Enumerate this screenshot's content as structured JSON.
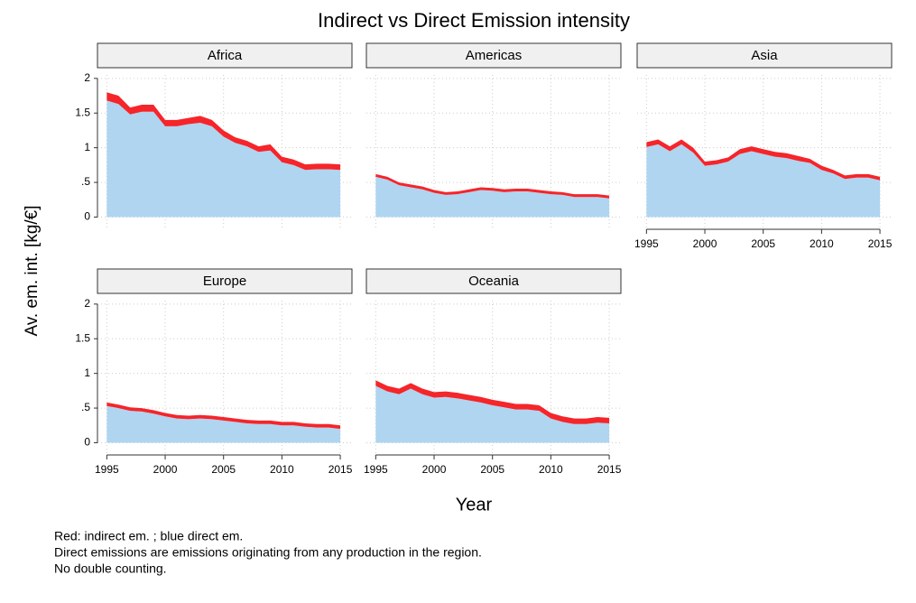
{
  "title": "Indirect vs Direct Emission intensity",
  "ylabel": "Av. em. int. [kg/€]",
  "xlabel": "Year",
  "notes": [
    "Red: indirect em. ; blue direct em.",
    "Direct emissions are emissions originating from any production in the region.",
    "No double counting."
  ],
  "axes": {
    "xlim": [
      1994.2,
      2016
    ],
    "xticks": [
      1995,
      2000,
      2005,
      2010,
      2015
    ],
    "ylim": [
      -0.15,
      2.05
    ],
    "yticks": [
      0,
      {
        "value": 0.5,
        "label": ".5"
      },
      1,
      1.5,
      2
    ],
    "grid": true
  },
  "chart_data": [
    {
      "type": "area",
      "title": "Africa",
      "x": [
        1995,
        1996,
        1997,
        1998,
        1999,
        2000,
        2001,
        2002,
        2003,
        2004,
        2005,
        2006,
        2007,
        2008,
        2009,
        2010,
        2011,
        2012,
        2013,
        2014,
        2015
      ],
      "series": [
        {
          "color": "#afd5f0",
          "values": [
            1.68,
            1.63,
            1.48,
            1.52,
            1.52,
            1.31,
            1.31,
            1.34,
            1.36,
            1.31,
            1.16,
            1.07,
            1.02,
            0.94,
            0.96,
            0.79,
            0.75,
            0.68,
            0.69,
            0.69,
            0.68
          ]
        },
        {
          "color": "#f5252a",
          "values": [
            0.12,
            0.12,
            0.1,
            0.1,
            0.1,
            0.09,
            0.09,
            0.09,
            0.1,
            0.09,
            0.09,
            0.08,
            0.08,
            0.08,
            0.09,
            0.08,
            0.08,
            0.08,
            0.08,
            0.08,
            0.08
          ]
        }
      ]
    },
    {
      "type": "area",
      "title": "Americas",
      "x": [
        1995,
        1996,
        1997,
        1998,
        1999,
        2000,
        2001,
        2002,
        2003,
        2004,
        2005,
        2006,
        2007,
        2008,
        2009,
        2010,
        2011,
        2012,
        2013,
        2014,
        2015
      ],
      "series": [
        {
          "color": "#afd5f0",
          "values": [
            0.58,
            0.54,
            0.46,
            0.43,
            0.4,
            0.35,
            0.32,
            0.33,
            0.36,
            0.39,
            0.38,
            0.36,
            0.37,
            0.37,
            0.35,
            0.33,
            0.32,
            0.29,
            0.29,
            0.29,
            0.27
          ]
        },
        {
          "color": "#f5252a",
          "values": [
            0.04,
            0.04,
            0.04,
            0.04,
            0.04,
            0.04,
            0.04,
            0.04,
            0.04,
            0.04,
            0.04,
            0.04,
            0.04,
            0.04,
            0.04,
            0.04,
            0.04,
            0.04,
            0.04,
            0.04,
            0.04
          ]
        }
      ]
    },
    {
      "type": "area",
      "title": "Asia",
      "x": [
        1995,
        1996,
        1997,
        1998,
        1999,
        2000,
        2001,
        2002,
        2003,
        2004,
        2005,
        2006,
        2007,
        2008,
        2009,
        2010,
        2011,
        2012,
        2013,
        2014,
        2015
      ],
      "series": [
        {
          "color": "#afd5f0",
          "values": [
            1.01,
            1.05,
            0.95,
            1.05,
            0.93,
            0.74,
            0.76,
            0.8,
            0.91,
            0.95,
            0.91,
            0.87,
            0.85,
            0.81,
            0.78,
            0.68,
            0.63,
            0.55,
            0.57,
            0.57,
            0.53
          ]
        },
        {
          "color": "#f5252a",
          "values": [
            0.07,
            0.07,
            0.07,
            0.07,
            0.07,
            0.06,
            0.06,
            0.06,
            0.07,
            0.07,
            0.07,
            0.07,
            0.07,
            0.07,
            0.06,
            0.06,
            0.05,
            0.05,
            0.05,
            0.05,
            0.05
          ]
        }
      ]
    },
    {
      "type": "area",
      "title": "Europe",
      "x": [
        1995,
        1996,
        1997,
        1998,
        1999,
        2000,
        2001,
        2002,
        2003,
        2004,
        2005,
        2006,
        2007,
        2008,
        2009,
        2010,
        2011,
        2012,
        2013,
        2014,
        2015
      ],
      "series": [
        {
          "color": "#afd5f0",
          "values": [
            0.53,
            0.5,
            0.46,
            0.45,
            0.42,
            0.38,
            0.35,
            0.34,
            0.35,
            0.34,
            0.32,
            0.3,
            0.28,
            0.27,
            0.27,
            0.25,
            0.25,
            0.23,
            0.22,
            0.22,
            0.2
          ]
        },
        {
          "color": "#f5252a",
          "values": [
            0.05,
            0.05,
            0.05,
            0.05,
            0.05,
            0.05,
            0.05,
            0.05,
            0.05,
            0.05,
            0.05,
            0.05,
            0.05,
            0.05,
            0.05,
            0.05,
            0.05,
            0.05,
            0.05,
            0.05,
            0.05
          ]
        }
      ]
    },
    {
      "type": "area",
      "title": "Oceania",
      "x": [
        1995,
        1996,
        1997,
        1998,
        1999,
        2000,
        2001,
        2002,
        2003,
        2004,
        2005,
        2006,
        2007,
        2008,
        2009,
        2010,
        2011,
        2012,
        2013,
        2014,
        2015
      ],
      "series": [
        {
          "color": "#afd5f0",
          "values": [
            0.82,
            0.74,
            0.7,
            0.78,
            0.7,
            0.65,
            0.66,
            0.64,
            0.61,
            0.58,
            0.54,
            0.51,
            0.48,
            0.48,
            0.46,
            0.35,
            0.3,
            0.27,
            0.27,
            0.29,
            0.28
          ]
        },
        {
          "color": "#f5252a",
          "values": [
            0.08,
            0.08,
            0.08,
            0.08,
            0.08,
            0.08,
            0.08,
            0.08,
            0.08,
            0.08,
            0.08,
            0.08,
            0.08,
            0.08,
            0.08,
            0.08,
            0.08,
            0.08,
            0.08,
            0.08,
            0.08
          ]
        }
      ]
    }
  ]
}
